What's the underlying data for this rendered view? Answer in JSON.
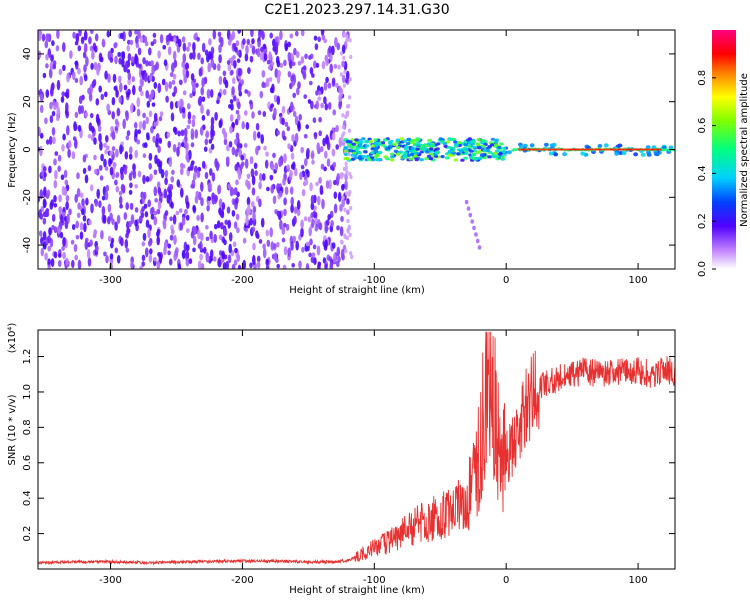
{
  "title": "C2E1.2023.297.14.31.G30",
  "chart_data": [
    {
      "type": "heatmap",
      "xlabel": "Height of straight line (km)",
      "ylabel": "Frequency (Hz)",
      "xlim": [
        -355,
        128
      ],
      "ylim": [
        -50,
        50
      ],
      "xticks": [
        -300,
        -200,
        -100,
        0,
        100
      ],
      "yticks": [
        -40,
        -20,
        0,
        20,
        40
      ],
      "colorbar": {
        "label": "Normalized spectral amplitude",
        "range": [
          0,
          1
        ],
        "ticks": [
          0.0,
          0.2,
          0.4,
          0.6,
          0.8
        ]
      },
      "regions": [
        {
          "x_range": [
            -355,
            -120
          ],
          "frequency_range": [
            -50,
            50
          ],
          "amplitude": "low, scattered (~0.1-0.2)"
        },
        {
          "x_range": [
            -120,
            0
          ],
          "frequency_range": [
            -5,
            5
          ],
          "amplitude": "0.3-0.8, narrow band around 0 Hz"
        },
        {
          "x_range": [
            0,
            128
          ],
          "frequency_range": [
            -2,
            2
          ],
          "amplitude": "~0.8-1.0, strong line at 0 Hz"
        }
      ],
      "features": [
        {
          "x": -30,
          "y_range": [
            -41,
            -22
          ],
          "note": "faint descending streak"
        }
      ]
    },
    {
      "type": "line",
      "xlabel": "Height of straight line (km)",
      "ylabel": "SNR (10 * v/v)",
      "y_multiplier": "(x10⁴)",
      "xlim": [
        -355,
        128
      ],
      "ylim": [
        0,
        1.35
      ],
      "xticks": [
        -300,
        -200,
        -100,
        0,
        100
      ],
      "yticks": [
        0.2,
        0.4,
        0.6,
        0.8,
        1.0,
        1.2
      ],
      "color": "#e83030",
      "series": [
        {
          "x": [
            -355,
            -330,
            -300,
            -270,
            -240,
            -210,
            -180,
            -150,
            -130,
            -120,
            -110,
            -100,
            -90,
            -80,
            -70,
            -60,
            -50,
            -40,
            -30,
            -25,
            -20,
            -15,
            -12,
            -8,
            -5,
            0,
            5,
            10,
            15,
            20,
            25,
            30,
            40,
            50,
            60,
            70,
            80,
            90,
            100,
            110,
            120,
            128
          ],
          "y": [
            0.035,
            0.04,
            0.04,
            0.035,
            0.04,
            0.045,
            0.045,
            0.04,
            0.04,
            0.05,
            0.08,
            0.12,
            0.15,
            0.2,
            0.24,
            0.27,
            0.3,
            0.33,
            0.4,
            0.5,
            0.7,
            0.95,
            1.1,
            0.9,
            0.6,
            0.62,
            0.7,
            0.82,
            0.92,
            0.98,
            1.02,
            1.05,
            1.08,
            1.1,
            1.12,
            1.1,
            1.12,
            1.11,
            1.12,
            1.1,
            1.13,
            1.1
          ]
        }
      ]
    }
  ]
}
